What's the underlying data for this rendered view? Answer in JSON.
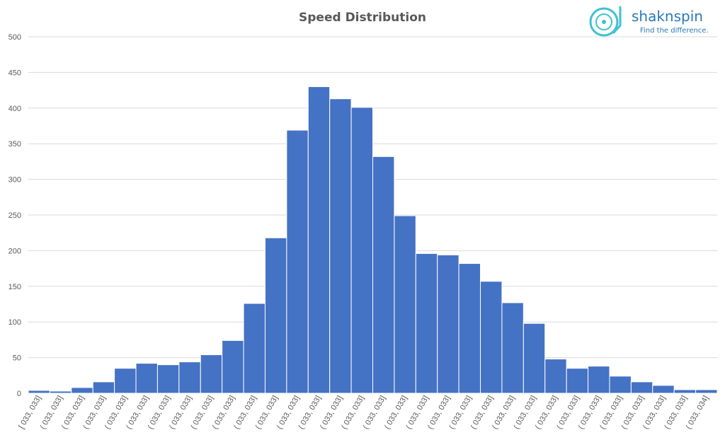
{
  "chart_data": {
    "type": "bar",
    "title": "Speed Distribution",
    "xlabel": "",
    "ylabel": "",
    "ylim": [
      0,
      500
    ],
    "yticks": [
      0,
      50,
      100,
      150,
      200,
      250,
      300,
      350,
      400,
      450,
      500
    ],
    "grid": true,
    "bar_color": "#4472c4",
    "categories": [
      "[ 033, 033]",
      "( 033, 033]",
      "( 033, 033]",
      "( 033, 033]",
      "( 033, 033]",
      "( 033, 033]",
      "( 033, 033]",
      "( 033, 033]",
      "( 033, 033]",
      "( 033, 033]",
      "( 033, 033]",
      "( 033, 033]",
      "( 033, 033]",
      "( 033, 033]",
      "( 033, 033]",
      "( 033, 033]",
      "( 033, 033]",
      "( 033, 033]",
      "( 033, 033]",
      "( 033, 033]",
      "( 033, 033]",
      "( 033, 033]",
      "( 033, 033]",
      "( 033, 033]",
      "( 033, 033]",
      "( 033, 033]",
      "( 033, 033]",
      "( 033, 033]",
      "( 033, 033]",
      "( 033, 033]",
      "( 033, 033]",
      "( 033, 034]"
    ],
    "values": [
      4,
      3,
      8,
      16,
      35,
      42,
      40,
      44,
      54,
      74,
      126,
      218,
      369,
      430,
      413,
      401,
      332,
      249,
      196,
      194,
      182,
      157,
      127,
      98,
      48,
      35,
      38,
      24,
      16,
      11,
      5,
      5
    ]
  },
  "logo": {
    "name": "shaknspin",
    "tagline": "Find the difference.",
    "color": "#2a79b6",
    "icon_color": "#3ec1d3"
  }
}
